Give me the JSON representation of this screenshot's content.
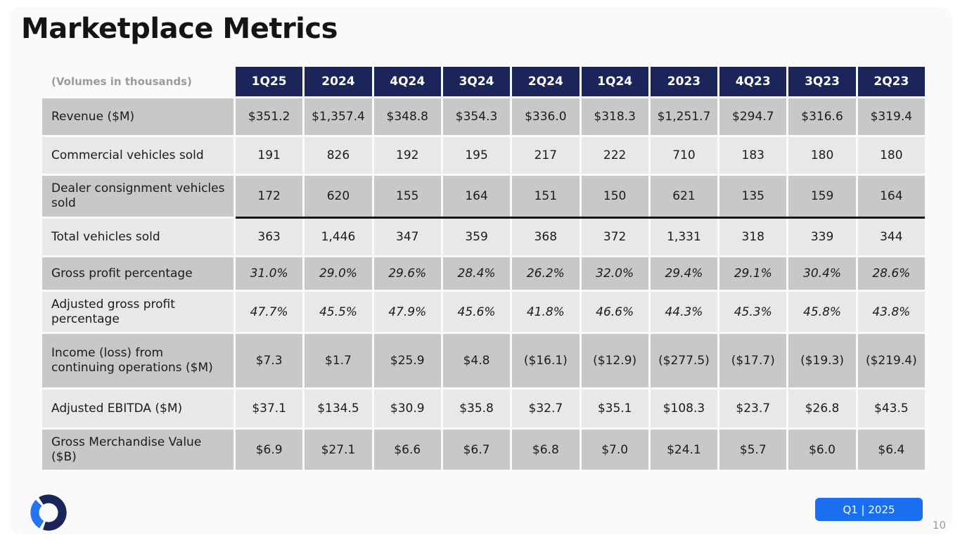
{
  "slide": {
    "title": "Marketplace Metrics",
    "badge_label": "Q1 | 2025",
    "page_number": "10"
  },
  "colors": {
    "header_bg": "#1b2559",
    "row_dark": "#c8c8c8",
    "row_light": "#e8e8e8",
    "badge_bg": "#1a6ef2",
    "logo_navy": "#1b2559",
    "logo_blue": "#2575f0"
  },
  "table": {
    "corner_label": "(Volumes in thousands)",
    "columns": [
      "1Q25",
      "2024",
      "4Q24",
      "3Q24",
      "2Q24",
      "1Q24",
      "2023",
      "4Q23",
      "3Q23",
      "2Q23"
    ],
    "rows": [
      {
        "label": "Revenue ($M)",
        "values": [
          "$351.2",
          "$1,357.4",
          "$348.8",
          "$354.3",
          "$336.0",
          "$318.3",
          "$1,251.7",
          "$294.7",
          "$316.6",
          "$319.4"
        ]
      },
      {
        "label": "Commercial vehicles sold",
        "values": [
          "191",
          "826",
          "192",
          "195",
          "217",
          "222",
          "710",
          "183",
          "180",
          "180"
        ]
      },
      {
        "label": "Dealer consignment vehicles sold",
        "values": [
          "172",
          "620",
          "155",
          "164",
          "151",
          "150",
          "621",
          "135",
          "159",
          "164"
        ],
        "sum_line": true
      },
      {
        "label": "Total vehicles sold",
        "values": [
          "363",
          "1,446",
          "347",
          "359",
          "368",
          "372",
          "1,331",
          "318",
          "339",
          "344"
        ]
      },
      {
        "label": "Gross profit percentage",
        "values": [
          "31.0%",
          "29.0%",
          "29.6%",
          "28.4%",
          "26.2%",
          "32.0%",
          "29.4%",
          "29.1%",
          "30.4%",
          "28.6%"
        ],
        "italic": true
      },
      {
        "label": "Adjusted gross profit percentage",
        "values": [
          "47.7%",
          "45.5%",
          "47.9%",
          "45.6%",
          "41.8%",
          "46.6%",
          "44.3%",
          "45.3%",
          "45.8%",
          "43.8%"
        ],
        "italic": true
      },
      {
        "label": "Income (loss) from continuing operations ($M)",
        "values": [
          "$7.3",
          "$1.7",
          "$25.9",
          "$4.8",
          "($16.1)",
          "($12.9)",
          "($277.5)",
          "($17.7)",
          "($19.3)",
          "($219.4)"
        ]
      },
      {
        "label": "Adjusted EBITDA ($M)",
        "values": [
          "$37.1",
          "$134.5",
          "$30.9",
          "$35.8",
          "$32.7",
          "$35.1",
          "$108.3",
          "$23.7",
          "$26.8",
          "$43.5"
        ]
      },
      {
        "label": "Gross Merchandise Value ($B)",
        "values": [
          "$6.9",
          "$27.1",
          "$6.6",
          "$6.7",
          "$6.8",
          "$7.0",
          "$24.1",
          "$5.7",
          "$6.0",
          "$6.4"
        ]
      }
    ]
  }
}
